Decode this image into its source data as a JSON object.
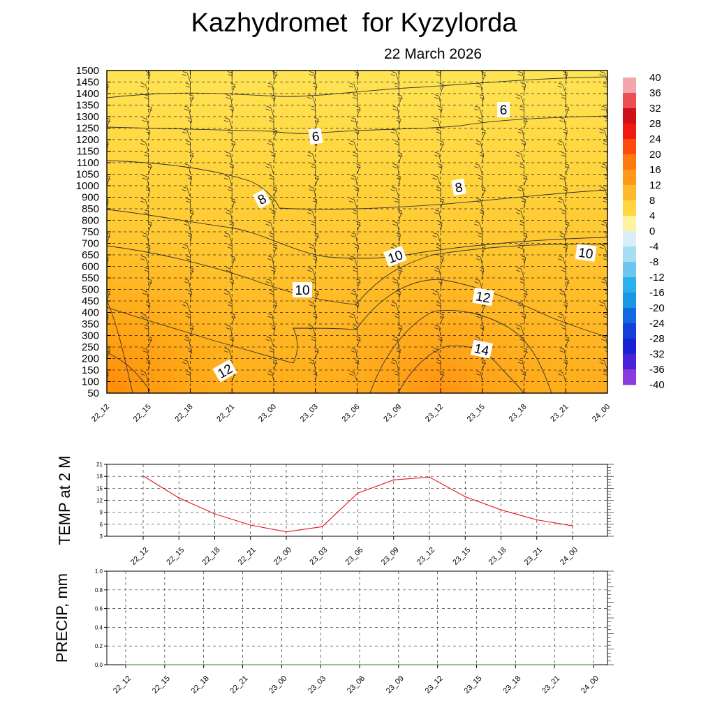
{
  "header": {
    "title": "Kazhydromet  for Kyzylorda",
    "date": "22 March 2026"
  },
  "time_labels": [
    "22_12",
    "22_15",
    "22_18",
    "22_21",
    "23_00",
    "23_03",
    "23_06",
    "23_09",
    "23_12",
    "23_15",
    "23_18",
    "23_21",
    "24_00"
  ],
  "colors": {
    "contour_line": "#333333",
    "temp_line": "#e8151b",
    "precip_line": "#2a8a2a",
    "grid": "#555555"
  },
  "chart_data": [
    {
      "type": "heatmap",
      "title": "",
      "xlabel": "",
      "ylabel": "",
      "y_ticks": [
        50,
        100,
        150,
        200,
        250,
        300,
        350,
        400,
        450,
        500,
        550,
        600,
        650,
        700,
        750,
        800,
        850,
        900,
        1000,
        1050,
        1100,
        1150,
        1200,
        1250,
        1300,
        1350,
        1400,
        1450,
        1500
      ],
      "ylim": [
        50,
        1500
      ],
      "grid": true,
      "colorbar": {
        "labels": [
          40,
          36,
          32,
          28,
          24,
          20,
          16,
          12,
          8,
          4,
          0,
          -4,
          -8,
          -12,
          -16,
          -20,
          -24,
          -28,
          -32,
          -36,
          -40
        ],
        "range": [
          -40,
          40
        ]
      },
      "contour_labels": [
        "6",
        "6",
        "8",
        "8",
        "10",
        "10",
        "10",
        "12",
        "12",
        "14"
      ],
      "wind_barbs": true
    },
    {
      "type": "line",
      "title": "",
      "xlabel": "",
      "ylabel": "TEMP at 2 M",
      "x": [
        "22_12",
        "22_15",
        "22_18",
        "22_21",
        "23_00",
        "23_03",
        "23_06",
        "23_09",
        "23_12",
        "23_15",
        "23_18",
        "23_21",
        "24_00"
      ],
      "series": [
        {
          "values": [
            18.1,
            12.6,
            8.6,
            5.8,
            4.1,
            5.4,
            13.8,
            17.1,
            17.8,
            12.9,
            9.6,
            7.1,
            5.6
          ]
        }
      ],
      "y_ticks": [
        3,
        6,
        9,
        12,
        15,
        18,
        21
      ],
      "ylim": [
        3,
        21
      ],
      "grid": true
    },
    {
      "type": "line",
      "title": "",
      "xlabel": "",
      "ylabel": "PRECIP, mm",
      "x": [
        "22_12",
        "22_15",
        "22_18",
        "22_21",
        "23_00",
        "23_03",
        "23_06",
        "23_09",
        "23_12",
        "23_15",
        "23_18",
        "23_21",
        "24_00"
      ],
      "series": [
        {
          "values": [
            0,
            0,
            0,
            0,
            0,
            0,
            0,
            0,
            0,
            0,
            0,
            0,
            0
          ]
        }
      ],
      "y_ticks": [
        "0.0",
        "0.2",
        "0.4",
        "0.6",
        "0.8",
        "1.0"
      ],
      "ylim": [
        0,
        1
      ],
      "grid": true
    }
  ]
}
